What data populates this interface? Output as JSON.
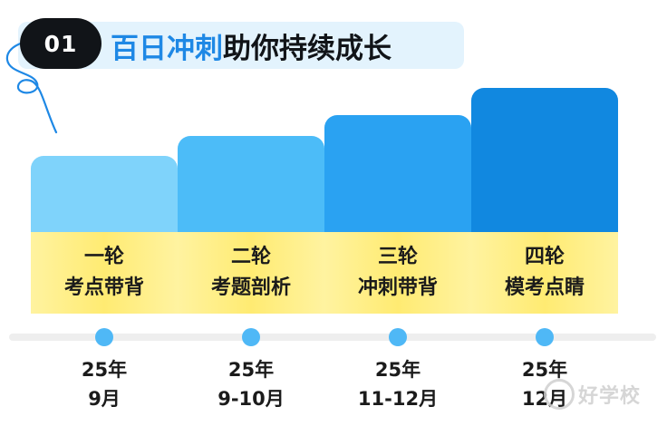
{
  "header": {
    "badge": "01",
    "title_highlight": "百日冲刺",
    "title_rest": "助你持续成长"
  },
  "stages": [
    {
      "round": "一轮",
      "topic": "考点带背",
      "date_year": "25年",
      "date_month": "9月"
    },
    {
      "round": "二轮",
      "topic": "考题剖析",
      "date_year": "25年",
      "date_month": "9-10月"
    },
    {
      "round": "三轮",
      "topic": "冲刺带背",
      "date_year": "25年",
      "date_month": "11-12月"
    },
    {
      "round": "四轮",
      "topic": "模考点睛",
      "date_year": "25年",
      "date_month": "12月"
    }
  ],
  "watermark": {
    "text": "好学校"
  },
  "colors": {
    "badge_bg": "#111418",
    "highlight": "#1e88e5",
    "title_bar_bg": "#e3f3fd",
    "stage_tops": [
      "#7fd3fb",
      "#4cbcf8",
      "#2aa2f2",
      "#1188e0"
    ],
    "band": "#ffeb72",
    "timeline_dot": "#4fb8f6"
  }
}
